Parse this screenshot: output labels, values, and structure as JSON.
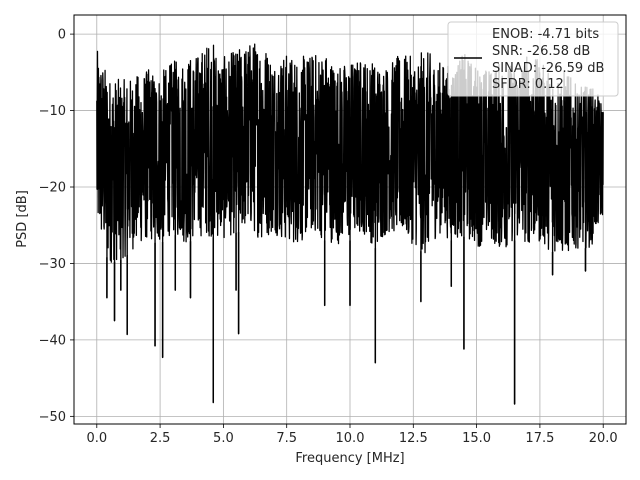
{
  "chart_data": {
    "type": "line",
    "title": "",
    "xlabel": "Frequency [MHz]",
    "ylabel": "PSD [dB]",
    "xlim": [
      -0.9,
      20.9
    ],
    "ylim": [
      -51.0,
      2.5
    ],
    "xticks": [
      0.0,
      2.5,
      5.0,
      7.5,
      10.0,
      12.5,
      15.0,
      17.5,
      20.0
    ],
    "xtick_labels": [
      "0.0",
      "2.5",
      "5.0",
      "7.5",
      "10.0",
      "12.5",
      "15.0",
      "17.5",
      "20.0"
    ],
    "yticks": [
      0,
      -10,
      -20,
      -30,
      -40,
      -50
    ],
    "ytick_labels": [
      "0",
      "−10",
      "−20",
      "−30",
      "−40",
      "−50"
    ],
    "grid": true,
    "legend_placement": "top-right",
    "legend_lines": [
      "ENOB: -4.71 bits",
      "SNR: -26.58 dB",
      "SINAD: -26.59 dB",
      "SFDR: 0.12"
    ],
    "series": [
      {
        "color": "#000000",
        "envelope_x": [
          0.0,
          0.5,
          1.0,
          1.5,
          2.0,
          2.5,
          3.0,
          3.5,
          4.0,
          4.5,
          5.0,
          5.5,
          6.0,
          6.5,
          7.0,
          7.5,
          8.0,
          8.5,
          9.0,
          9.5,
          10.0,
          10.5,
          11.0,
          11.5,
          12.0,
          12.5,
          13.0,
          13.5,
          14.0,
          14.5,
          15.0,
          15.5,
          16.0,
          16.5,
          17.0,
          17.5,
          18.0,
          18.5,
          19.0,
          19.5,
          20.0
        ],
        "envelope_max": [
          -2.0,
          -5.5,
          -6.0,
          -5.5,
          -4.5,
          -5.0,
          -3.5,
          -3.0,
          -2.5,
          -0.5,
          -3.0,
          -2.0,
          -1.0,
          -0.5,
          -3.0,
          -2.5,
          -3.0,
          -2.5,
          -2.0,
          -4.0,
          -3.5,
          -3.0,
          -3.5,
          -4.0,
          -2.5,
          -3.0,
          -2.0,
          -3.5,
          -4.0,
          -2.5,
          -4.0,
          -4.5,
          -3.5,
          -4.0,
          -2.5,
          -3.5,
          -5.0,
          -4.5,
          -7.0,
          -6.5,
          -9.0
        ],
        "envelope_min": [
          -26.0,
          -30.0,
          -29.5,
          -28.0,
          -27.0,
          -27.5,
          -26.0,
          -27.5,
          -26.5,
          -26.5,
          -27.0,
          -26.0,
          -25.5,
          -27.0,
          -26.0,
          -27.5,
          -27.5,
          -26.0,
          -27.0,
          -27.5,
          -27.0,
          -26.0,
          -28.0,
          -26.0,
          -26.5,
          -27.5,
          -29.0,
          -26.0,
          -27.0,
          -26.5,
          -28.0,
          -27.0,
          -28.5,
          -27.0,
          -27.5,
          -27.5,
          -28.5,
          -29.0,
          -28.0,
          -28.0,
          -24.0
        ],
        "notable_dips": [
          {
            "x": 0.4,
            "y": -34.5
          },
          {
            "x": 0.7,
            "y": -37.5
          },
          {
            "x": 0.95,
            "y": -33.5
          },
          {
            "x": 1.2,
            "y": -39.3
          },
          {
            "x": 2.3,
            "y": -40.8
          },
          {
            "x": 2.6,
            "y": -42.3
          },
          {
            "x": 3.1,
            "y": -33.5
          },
          {
            "x": 3.7,
            "y": -34.5
          },
          {
            "x": 4.6,
            "y": -48.2
          },
          {
            "x": 5.5,
            "y": -33.5
          },
          {
            "x": 5.6,
            "y": -39.2
          },
          {
            "x": 9.0,
            "y": -35.5
          },
          {
            "x": 10.0,
            "y": -35.5
          },
          {
            "x": 11.0,
            "y": -43.0
          },
          {
            "x": 12.8,
            "y": -35.0
          },
          {
            "x": 14.0,
            "y": -33.0
          },
          {
            "x": 14.5,
            "y": -41.2
          },
          {
            "x": 16.5,
            "y": -48.4
          },
          {
            "x": 18.0,
            "y": -31.5
          },
          {
            "x": 19.3,
            "y": -31.0
          }
        ]
      }
    ]
  }
}
